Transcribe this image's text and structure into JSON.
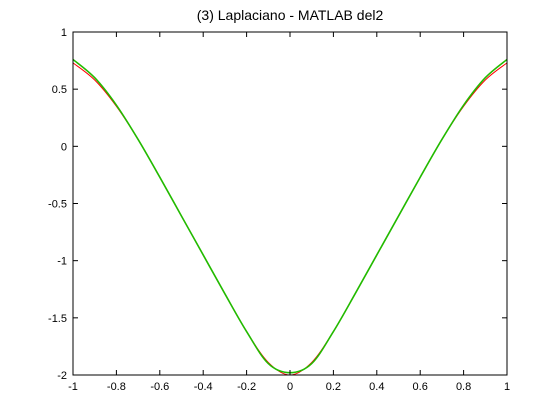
{
  "chart_data": {
    "type": "line",
    "title": "(3) Laplaciano - MATLAB del2",
    "xlabel": "",
    "ylabel": "",
    "xlim": [
      -1,
      1
    ],
    "ylim": [
      -2,
      1
    ],
    "grid": false,
    "x_ticks": [
      -1,
      -0.8,
      -0.6,
      -0.4,
      -0.2,
      0,
      0.2,
      0.4,
      0.6,
      0.8,
      1
    ],
    "x_tick_labels": [
      "-1",
      "-0.8",
      "-0.6",
      "-0.4",
      "-0.2",
      "0",
      "0.2",
      "0.4",
      "0.6",
      "0.8",
      "1"
    ],
    "y_ticks": [
      1,
      0.5,
      0,
      -0.5,
      -1,
      -1.5,
      -2
    ],
    "y_tick_labels": [
      "1",
      "0.5",
      "0",
      "-0.5",
      "-1",
      "-1.5",
      "-2"
    ],
    "series": [
      {
        "color": "#ff0000",
        "x": [
          -1,
          -0.9,
          -0.8,
          -0.7,
          -0.6,
          -0.5,
          -0.4,
          -0.3,
          -0.2,
          -0.1,
          0,
          0.1,
          0.2,
          0.3,
          0.4,
          0.5,
          0.6,
          0.7,
          0.8,
          0.9,
          1
        ],
        "y": [
          0.73,
          0.58,
          0.35,
          0.06,
          -0.27,
          -0.61,
          -0.95,
          -1.29,
          -1.62,
          -1.89,
          -2.0,
          -1.89,
          -1.62,
          -1.29,
          -0.95,
          -0.61,
          -0.27,
          0.06,
          0.35,
          0.58,
          0.73
        ]
      },
      {
        "color": "#22bb00",
        "x": [
          -1,
          -0.9,
          -0.8,
          -0.7,
          -0.6,
          -0.5,
          -0.4,
          -0.3,
          -0.2,
          -0.1,
          0,
          0.1,
          0.2,
          0.3,
          0.4,
          0.5,
          0.6,
          0.7,
          0.8,
          0.9,
          1
        ],
        "y": [
          0.76,
          0.6,
          0.36,
          0.06,
          -0.27,
          -0.61,
          -0.95,
          -1.29,
          -1.62,
          -1.9,
          -1.98,
          -1.9,
          -1.62,
          -1.29,
          -0.95,
          -0.61,
          -0.27,
          0.06,
          0.36,
          0.6,
          0.76
        ]
      }
    ]
  }
}
